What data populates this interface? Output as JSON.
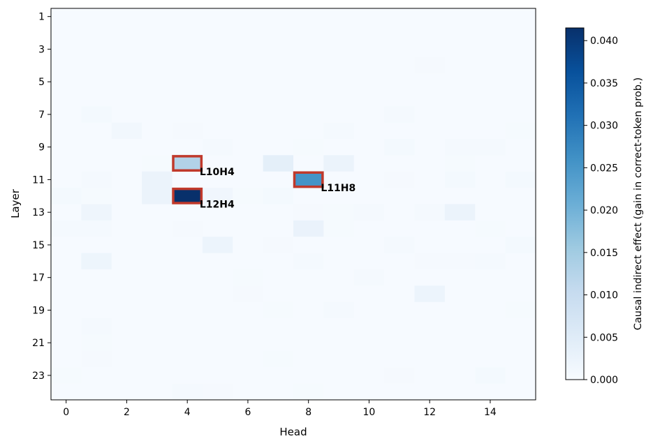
{
  "chart_data": {
    "type": "heatmap",
    "title": "",
    "xlabel": "Head",
    "ylabel": "Layer",
    "x_ticks": [
      "0",
      "2",
      "4",
      "6",
      "8",
      "10",
      "12",
      "14"
    ],
    "y_ticks": [
      "1",
      "3",
      "5",
      "7",
      "9",
      "11",
      "13",
      "15",
      "17",
      "19",
      "21",
      "23"
    ],
    "heads": [
      0,
      1,
      2,
      3,
      4,
      5,
      6,
      7,
      8,
      9,
      10,
      11,
      12,
      13,
      14,
      15
    ],
    "layers": [
      1,
      2,
      3,
      4,
      5,
      6,
      7,
      8,
      9,
      10,
      11,
      12,
      13,
      14,
      15,
      16,
      17,
      18,
      19,
      20,
      21,
      22,
      23,
      24
    ],
    "values": [
      [
        0.0003,
        0.0003,
        0.0002,
        0.0002,
        0.0002,
        0.0002,
        0.0002,
        0.0002,
        0.0002,
        0.0002,
        0.0002,
        0.0002,
        0.0002,
        0.0002,
        0.0002,
        0.0002
      ],
      [
        0.0002,
        0.0002,
        0.0002,
        0.0002,
        0.0002,
        0.0002,
        0.0002,
        0.0002,
        0.0002,
        0.0002,
        0.0002,
        0.0002,
        0.0002,
        0.0002,
        0.0002,
        0.0002
      ],
      [
        0.0002,
        0.0002,
        0.0002,
        0.0002,
        0.0002,
        0.0002,
        0.0002,
        0.0002,
        0.0002,
        0.0002,
        0.0002,
        0.0002,
        0.0002,
        0.0002,
        0.0002,
        0.0002
      ],
      [
        0.0002,
        0.0002,
        0.0002,
        0.0002,
        0.0002,
        0.0002,
        0.0002,
        0.0002,
        0.0002,
        0.0002,
        0.0002,
        0.0002,
        0.0005,
        0.0002,
        0.0002,
        0.0002
      ],
      [
        0.0002,
        0.0002,
        0.0002,
        0.0002,
        0.0002,
        0.0002,
        0.0002,
        0.0002,
        0.0002,
        0.0002,
        0.0002,
        0.0002,
        0.0002,
        0.0002,
        0.0002,
        0.0002
      ],
      [
        0.0002,
        0.0002,
        0.0002,
        0.0002,
        0.0002,
        0.0002,
        0.0002,
        0.0002,
        0.0002,
        0.0002,
        0.0002,
        0.0002,
        0.0002,
        0.0002,
        0.0002,
        0.0002
      ],
      [
        0.0002,
        0.0008,
        0.0002,
        0.0002,
        0.0002,
        0.0002,
        0.0002,
        0.0002,
        0.0002,
        0.0002,
        0.0002,
        0.0006,
        0.0002,
        0.0002,
        0.0002,
        0.0002
      ],
      [
        0.0002,
        0.0002,
        0.0012,
        0.0002,
        0.0005,
        0.0002,
        0.0002,
        0.0002,
        0.0002,
        0.0006,
        0.0002,
        0.0002,
        0.0002,
        0.0002,
        0.0002,
        0.0004
      ],
      [
        0.0002,
        0.0002,
        0.0002,
        0.0002,
        0.0002,
        0.0006,
        0.0002,
        0.0002,
        0.0004,
        0.0002,
        0.0002,
        0.0008,
        0.0002,
        0.0006,
        0.0007,
        0.0002
      ],
      [
        0.0002,
        0.0002,
        0.0002,
        0.0004,
        0.013,
        0.0002,
        0.0002,
        0.004,
        0.0002,
        0.0025,
        0.0002,
        0.0002,
        0.0002,
        0.0004,
        0.0002,
        0.0002
      ],
      [
        0.0002,
        0.0006,
        0.0002,
        0.0025,
        0.0002,
        0.0002,
        0.0002,
        0.0002,
        0.0255,
        0.0002,
        0.0002,
        0.0005,
        0.0002,
        0.0008,
        0.0002,
        0.0008
      ],
      [
        0.0008,
        0.0004,
        0.0002,
        0.0025,
        0.0415,
        0.0015,
        0.0004,
        0.0008,
        0.0002,
        0.0002,
        0.0002,
        0.0002,
        0.0002,
        0.0002,
        0.0002,
        0.0002
      ],
      [
        0.0002,
        0.0018,
        0.0002,
        0.0002,
        0.0002,
        0.0002,
        0.0002,
        0.0002,
        0.0005,
        0.0004,
        0.0007,
        0.0002,
        0.0006,
        0.0025,
        0.0002,
        0.0002
      ],
      [
        0.0006,
        0.0006,
        0.0002,
        0.0002,
        0.0005,
        0.0002,
        0.0002,
        0.0002,
        0.0028,
        0.0004,
        0.0002,
        0.0002,
        0.0002,
        0.0002,
        0.0004,
        0.0002
      ],
      [
        0.0002,
        0.0002,
        0.0002,
        0.0002,
        0.0002,
        0.0022,
        0.0002,
        0.0005,
        0.0002,
        0.0002,
        0.0002,
        0.0006,
        0.0002,
        0.0002,
        0.0002,
        0.0008
      ],
      [
        0.0002,
        0.002,
        0.0002,
        0.0002,
        0.0002,
        0.0002,
        0.0002,
        0.0002,
        0.0007,
        0.0002,
        0.0002,
        0.0002,
        0.0005,
        0.0005,
        0.0006,
        0.0002
      ],
      [
        0.0002,
        0.0002,
        0.0002,
        0.0002,
        0.0002,
        0.0002,
        0.0004,
        0.0002,
        0.0002,
        0.0002,
        0.0006,
        0.0002,
        0.0002,
        0.0002,
        0.0002,
        0.0002
      ],
      [
        0.0002,
        0.0002,
        0.0002,
        0.0002,
        0.0002,
        0.0002,
        0.0005,
        0.0002,
        0.0002,
        0.0002,
        0.0002,
        0.0002,
        0.0022,
        0.0002,
        0.0002,
        0.0002
      ],
      [
        0.0002,
        0.0002,
        0.0002,
        0.0002,
        0.0002,
        0.0002,
        0.0002,
        0.0004,
        0.0002,
        0.0006,
        0.0002,
        0.0002,
        0.0002,
        0.0002,
        0.0002,
        0.0004
      ],
      [
        0.0002,
        0.0006,
        0.0002,
        0.0002,
        0.0002,
        0.0002,
        0.0002,
        0.0002,
        0.0002,
        0.0002,
        0.0002,
        0.0002,
        0.0002,
        0.0002,
        0.0002,
        0.0002
      ],
      [
        0.0002,
        0.0004,
        0.0002,
        0.0002,
        0.0002,
        0.0002,
        0.0002,
        0.0002,
        0.0002,
        0.0002,
        0.0002,
        0.0002,
        0.0002,
        0.0002,
        0.0002,
        0.0002
      ],
      [
        0.0002,
        0.0005,
        0.0002,
        0.0002,
        0.0002,
        0.0002,
        0.0002,
        0.0004,
        0.0002,
        0.0002,
        0.0002,
        0.0002,
        0.0002,
        0.0002,
        0.0002,
        0.0002
      ],
      [
        0.0004,
        0.0002,
        0.0002,
        0.0002,
        0.0002,
        0.0002,
        0.0002,
        0.0002,
        0.0002,
        0.0002,
        0.0002,
        0.0005,
        0.0002,
        0.0002,
        0.0008,
        0.0002
      ],
      [
        0.0002,
        0.0002,
        0.0002,
        0.0002,
        0.0006,
        0.0005,
        0.0002,
        0.0002,
        0.0004,
        0.0002,
        0.0002,
        0.0002,
        0.0002,
        0.0002,
        0.0002,
        0.0002
      ]
    ],
    "vmin": 0.0,
    "vmax": 0.0415,
    "colormap": "Blues",
    "colorbar": {
      "label": "Causal indirect effect (gain in correct-token prob.)",
      "ticks": [
        "0.000",
        "0.005",
        "0.010",
        "0.015",
        "0.020",
        "0.025",
        "0.030",
        "0.035",
        "0.040"
      ]
    },
    "highlights": [
      {
        "label": "L10H4",
        "layer": 10,
        "head": 4
      },
      {
        "label": "L11H8",
        "layer": 11,
        "head": 8
      },
      {
        "label": "L12H4",
        "layer": 12,
        "head": 4
      }
    ],
    "highlight_color": "#c0392b",
    "grid": false
  }
}
